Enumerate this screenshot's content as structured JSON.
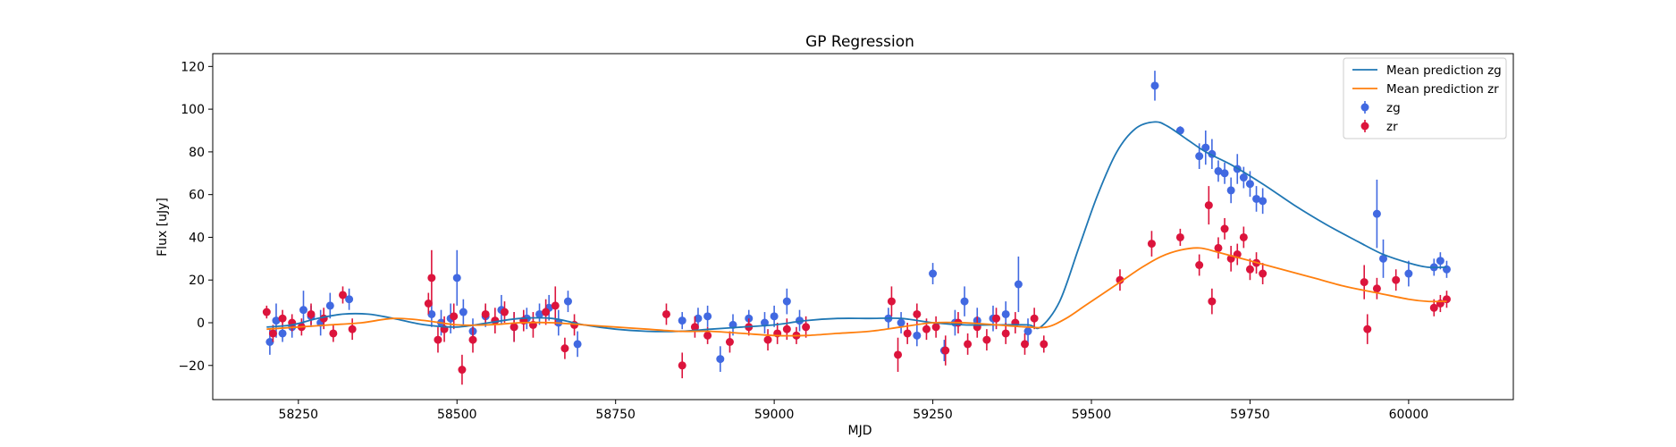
{
  "chart_data": {
    "type": "line",
    "title": "GP Regression",
    "xlabel": "MJD",
    "ylabel": "Flux [uJy]",
    "xlim": [
      58115,
      60165
    ],
    "ylim": [
      -36,
      126
    ],
    "xticks": [
      58250,
      58500,
      58750,
      59000,
      59250,
      59500,
      59750,
      60000
    ],
    "yticks": [
      -20,
      0,
      20,
      40,
      60,
      80,
      100,
      120
    ],
    "grid": false,
    "legend_position": "top-right",
    "series": [
      {
        "name": "Mean prediction zg",
        "kind": "line",
        "color": "#1f77b4",
        "x": [
          58200,
          58240,
          58280,
          58320,
          58360,
          58400,
          58450,
          58500,
          58550,
          58600,
          58650,
          58700,
          58750,
          58800,
          58850,
          58900,
          58950,
          59000,
          59050,
          59100,
          59150,
          59200,
          59250,
          59300,
          59350,
          59400,
          59420,
          59450,
          59480,
          59510,
          59540,
          59570,
          59600,
          59620,
          59650,
          59680,
          59720,
          59770,
          59820,
          59870,
          59920,
          59960,
          60000,
          60030,
          60060
        ],
        "y": [
          -2,
          -1,
          2,
          4,
          4,
          2,
          -1,
          -2,
          0,
          2,
          2,
          -1,
          -3,
          -4,
          -4,
          -3,
          -2,
          -1,
          1,
          2,
          2,
          2,
          0,
          -1,
          -1,
          -1,
          -2,
          10,
          35,
          60,
          80,
          91,
          94,
          92,
          86,
          80,
          74,
          65,
          55,
          46,
          38,
          32,
          28,
          26,
          26
        ]
      },
      {
        "name": "Mean prediction zr",
        "kind": "line",
        "color": "#ff7f0e",
        "x": [
          58200,
          58250,
          58300,
          58350,
          58400,
          58450,
          58500,
          58550,
          58600,
          58650,
          58700,
          58750,
          58800,
          58850,
          58900,
          58950,
          59000,
          59050,
          59100,
          59150,
          59200,
          59250,
          59300,
          59350,
          59400,
          59430,
          59460,
          59490,
          59520,
          59550,
          59580,
          59610,
          59640,
          59670,
          59700,
          59750,
          59800,
          59850,
          59900,
          59950,
          60000,
          60030,
          60060
        ],
        "y": [
          -3,
          -2,
          -1,
          0,
          2,
          1,
          -1,
          -1,
          0,
          0,
          -1,
          -2,
          -3,
          -4,
          -4,
          -5,
          -6,
          -6,
          -5,
          -4,
          -2,
          0,
          0,
          -1,
          -2,
          -2,
          2,
          8,
          14,
          20,
          26,
          31,
          34,
          35,
          33,
          29,
          25,
          21,
          17,
          14,
          11,
          10,
          10
        ]
      },
      {
        "name": "zg",
        "kind": "errorbar",
        "color": "#4169e1",
        "x": [
          58205,
          58215,
          58225,
          58240,
          58258,
          58270,
          58285,
          58300,
          58330,
          58460,
          58475,
          58490,
          58500,
          58510,
          58525,
          58545,
          58570,
          58590,
          58610,
          58630,
          58645,
          58660,
          58675,
          58690,
          58855,
          58880,
          58895,
          58915,
          58935,
          58960,
          58985,
          59000,
          59020,
          59040,
          59180,
          59200,
          59225,
          59250,
          59268,
          59285,
          59300,
          59320,
          59345,
          59365,
          59385,
          59400,
          59600,
          59640,
          59670,
          59680,
          59690,
          59700,
          59710,
          59720,
          59730,
          59740,
          59750,
          59760,
          59770,
          59950,
          59960,
          60000,
          60040,
          60050,
          60060
        ],
        "y": [
          -9,
          1,
          -5,
          -2,
          6,
          3,
          0,
          8,
          11,
          4,
          0,
          2,
          21,
          5,
          -4,
          3,
          6,
          -2,
          2,
          4,
          7,
          0,
          10,
          -10,
          1,
          2,
          3,
          -17,
          -1,
          2,
          0,
          3,
          10,
          1,
          2,
          0,
          -6,
          23,
          -13,
          0,
          10,
          1,
          2,
          4,
          18,
          -4,
          111,
          90,
          78,
          82,
          79,
          71,
          70,
          62,
          72,
          68,
          65,
          58,
          57,
          51,
          30,
          23,
          26,
          29,
          25
        ],
        "yerr": [
          6,
          8,
          4,
          5,
          9,
          5,
          6,
          6,
          5,
          6,
          6,
          7,
          13,
          6,
          6,
          5,
          7,
          7,
          5,
          5,
          6,
          6,
          5,
          6,
          4,
          5,
          5,
          6,
          5,
          4,
          5,
          5,
          6,
          5,
          5,
          5,
          5,
          5,
          5,
          6,
          7,
          6,
          6,
          6,
          13,
          6,
          7,
          2,
          6,
          8,
          7,
          5,
          5,
          6,
          7,
          5,
          6,
          6,
          6,
          16,
          9,
          6,
          4,
          4,
          4
        ]
      },
      {
        "name": "zr",
        "kind": "errorbar",
        "color": "#dc143c",
        "x": [
          58200,
          58210,
          58225,
          58240,
          58255,
          58270,
          58290,
          58305,
          58320,
          58335,
          58455,
          58460,
          58470,
          58480,
          58495,
          58508,
          58525,
          58545,
          58560,
          58575,
          58590,
          58605,
          58620,
          58640,
          58655,
          58670,
          58685,
          58830,
          58855,
          58875,
          58895,
          58930,
          58960,
          58990,
          59005,
          59020,
          59035,
          59050,
          59185,
          59195,
          59210,
          59225,
          59240,
          59255,
          59270,
          59290,
          59305,
          59320,
          59335,
          59350,
          59365,
          59380,
          59395,
          59410,
          59425,
          59545,
          59595,
          59640,
          59670,
          59685,
          59690,
          59700,
          59710,
          59720,
          59730,
          59740,
          59750,
          59760,
          59770,
          59930,
          59935,
          59950,
          59980,
          60040,
          60050,
          60060
        ],
        "y": [
          5,
          -5,
          2,
          0,
          -2,
          4,
          2,
          -5,
          13,
          -3,
          9,
          21,
          -8,
          -3,
          3,
          -22,
          -8,
          4,
          1,
          5,
          -2,
          1,
          -1,
          5,
          8,
          -12,
          -1,
          4,
          -20,
          -2,
          -6,
          -9,
          -2,
          -8,
          -5,
          -3,
          -6,
          -2,
          10,
          -15,
          -5,
          4,
          -3,
          -2,
          -13,
          0,
          -10,
          -2,
          -8,
          2,
          -5,
          0,
          -10,
          2,
          -10,
          20,
          37,
          40,
          27,
          55,
          10,
          35,
          44,
          30,
          32,
          40,
          25,
          28,
          23,
          19,
          -3,
          16,
          20,
          7,
          9,
          11
        ],
        "yerr": [
          3,
          4,
          4,
          4,
          4,
          5,
          5,
          4,
          4,
          5,
          5,
          13,
          6,
          6,
          6,
          7,
          6,
          5,
          6,
          5,
          7,
          5,
          6,
          6,
          9,
          5,
          5,
          5,
          6,
          5,
          4,
          5,
          4,
          5,
          5,
          5,
          4,
          5,
          7,
          8,
          5,
          5,
          5,
          5,
          7,
          5,
          5,
          5,
          5,
          5,
          5,
          5,
          5,
          5,
          4,
          5,
          6,
          4,
          5,
          9,
          6,
          5,
          5,
          6,
          5,
          5,
          5,
          5,
          5,
          8,
          7,
          5,
          5,
          4,
          4,
          4
        ]
      }
    ]
  }
}
